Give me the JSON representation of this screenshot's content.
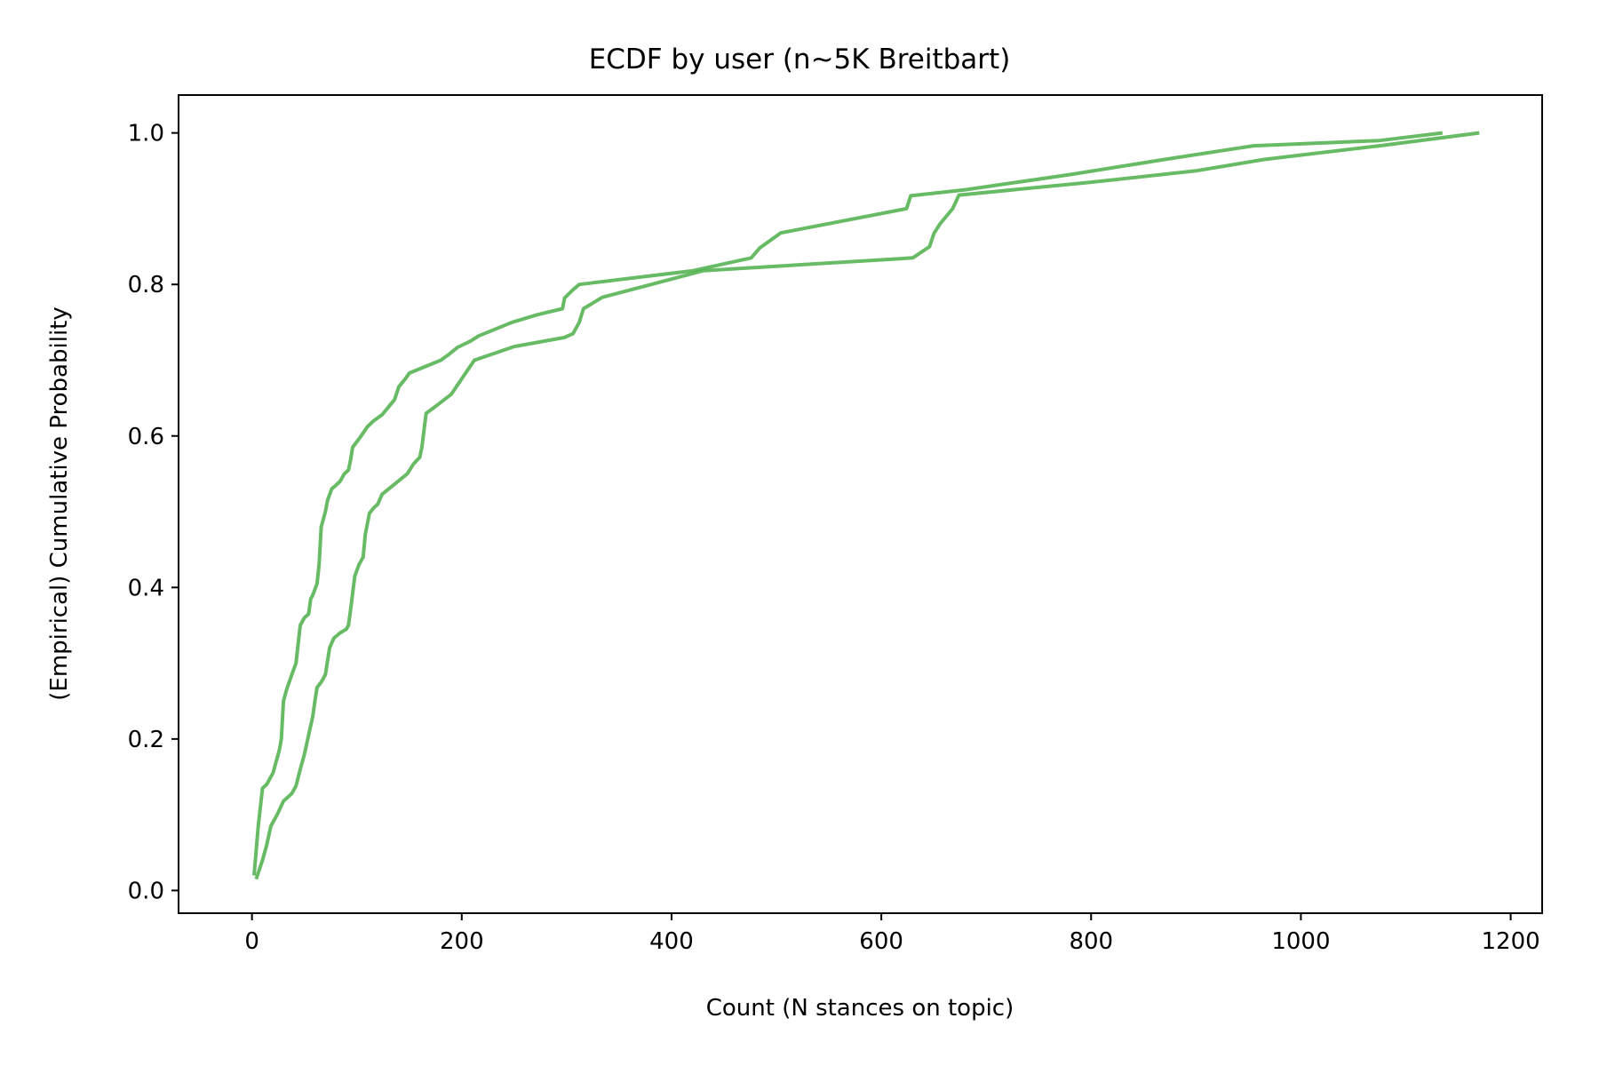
{
  "chart_data": {
    "type": "line",
    "title": "ECDF by user (n~5K Breitbart)",
    "xlabel": "Count (N stances on topic)",
    "ylabel": "(Empirical) Cumulative Probability",
    "xlim": [
      -70,
      1230
    ],
    "ylim": [
      -0.03,
      1.05
    ],
    "xticks": [
      0,
      200,
      400,
      600,
      800,
      1000,
      1200
    ],
    "xtick_labels": [
      "0",
      "200",
      "400",
      "600",
      "800",
      "1000",
      "1200"
    ],
    "yticks": [
      0.0,
      0.2,
      0.4,
      0.6,
      0.8,
      1.0
    ],
    "ytick_labels": [
      "0.0",
      "0.2",
      "0.4",
      "0.6",
      "0.8",
      "1.0"
    ],
    "grid": false,
    "legend": "none",
    "line_color": "#4daf4a",
    "series": [
      {
        "x": [
          2,
          6,
          10,
          14,
          20,
          26,
          28,
          30,
          33,
          38,
          42,
          46,
          50,
          54,
          56,
          58,
          62,
          64,
          66,
          70,
          72,
          76,
          80,
          84,
          88,
          92,
          94,
          96,
          104,
          110,
          116,
          124,
          130,
          136,
          140,
          146,
          150,
          180,
          188,
          196,
          208,
          216,
          248,
          272,
          296,
          298,
          306,
          312,
          420,
          476,
          484,
          504,
          624,
          628,
          680,
          780,
          870,
          955,
          1075,
          1135
        ],
        "y": [
          0.02,
          0.085,
          0.135,
          0.14,
          0.155,
          0.185,
          0.2,
          0.25,
          0.265,
          0.285,
          0.3,
          0.35,
          0.36,
          0.365,
          0.385,
          0.39,
          0.405,
          0.43,
          0.48,
          0.5,
          0.515,
          0.53,
          0.535,
          0.54,
          0.55,
          0.555,
          0.568,
          0.585,
          0.6,
          0.612,
          0.62,
          0.628,
          0.638,
          0.648,
          0.665,
          0.675,
          0.683,
          0.7,
          0.708,
          0.717,
          0.725,
          0.732,
          0.75,
          0.76,
          0.768,
          0.782,
          0.793,
          0.8,
          0.818,
          0.835,
          0.848,
          0.868,
          0.9,
          0.917,
          0.925,
          0.945,
          0.965,
          0.983,
          0.99,
          1.0
        ]
      },
      {
        "x": [
          4,
          10,
          14,
          18,
          24,
          30,
          38,
          42,
          46,
          50,
          54,
          58,
          60,
          62,
          66,
          70,
          74,
          78,
          84,
          90,
          92,
          94,
          98,
          102,
          106,
          108,
          112,
          116,
          120,
          124,
          148,
          154,
          160,
          162,
          166,
          176,
          190,
          212,
          250,
          298,
          306,
          312,
          316,
          334,
          430,
          630,
          646,
          650,
          656,
          668,
          674,
          800,
          900,
          965,
          1075,
          1170
        ],
        "y": [
          0.015,
          0.04,
          0.06,
          0.085,
          0.1,
          0.118,
          0.128,
          0.138,
          0.16,
          0.18,
          0.205,
          0.23,
          0.25,
          0.268,
          0.275,
          0.285,
          0.32,
          0.333,
          0.34,
          0.345,
          0.35,
          0.37,
          0.415,
          0.43,
          0.44,
          0.47,
          0.498,
          0.505,
          0.51,
          0.523,
          0.55,
          0.563,
          0.572,
          0.585,
          0.63,
          0.64,
          0.655,
          0.7,
          0.718,
          0.73,
          0.735,
          0.75,
          0.768,
          0.783,
          0.818,
          0.835,
          0.85,
          0.867,
          0.88,
          0.9,
          0.918,
          0.935,
          0.95,
          0.965,
          0.983,
          1.0
        ]
      }
    ]
  }
}
